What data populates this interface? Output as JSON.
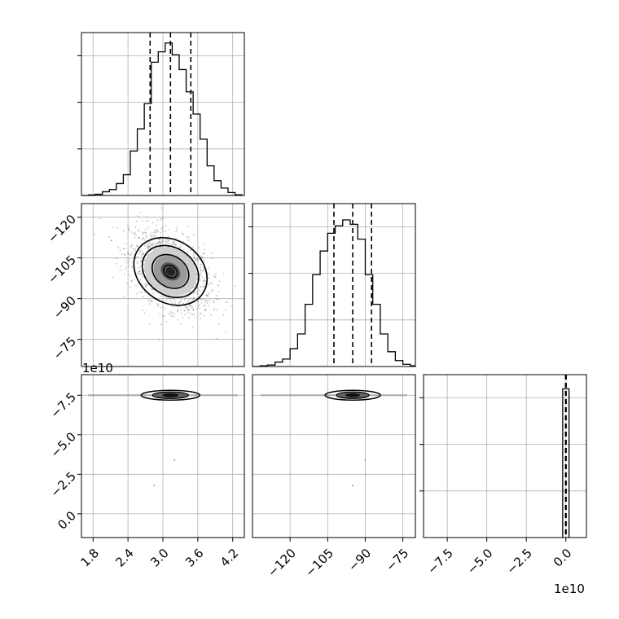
{
  "chart_data": {
    "type": "corner",
    "grid": true,
    "offset_label": "1e10",
    "panels": [
      {
        "kind": "histogram",
        "variable": "param-1",
        "xlim": [
          1.6,
          4.4
        ],
        "bins": [
          1.6,
          1.72,
          1.84,
          1.96,
          2.08,
          2.2,
          2.32,
          2.44,
          2.56,
          2.68,
          2.8,
          2.92,
          3.04,
          3.16,
          3.28,
          3.4,
          3.52,
          3.64,
          3.76,
          3.88,
          4.0,
          4.12,
          4.24,
          4.36
        ],
        "counts": [
          0,
          0.4,
          0.8,
          2.5,
          4,
          8,
          14,
          30,
          45,
          62,
          90,
          97,
          103,
          95,
          85,
          70,
          55,
          38,
          20,
          10,
          5,
          2,
          0.5
        ],
        "quantiles": [
          2.78,
          3.13,
          3.48
        ]
      },
      {
        "kind": "histogram",
        "variable": "param-2",
        "xlim": [
          -135,
          -70
        ],
        "bins": [
          -135,
          -132,
          -129,
          -126,
          -123,
          -120,
          -117,
          -114,
          -111,
          -108,
          -105,
          -102,
          -99,
          -96,
          -93,
          -90,
          -87,
          -84,
          -81,
          -78,
          -75,
          -72,
          -70
        ],
        "counts": [
          0,
          0.5,
          1,
          3,
          5,
          12,
          22,
          42,
          62,
          78,
          90,
          95,
          99,
          96,
          86,
          62,
          42,
          22,
          10,
          4,
          1.5,
          0.5
        ],
        "quantiles": [
          -102.5,
          -95,
          -87.5
        ]
      },
      {
        "kind": "histogram",
        "variable": "param-3",
        "xlim": [
          -9.0,
          1.3
        ],
        "bins": [
          -0.2,
          0.2
        ],
        "counts": [
          105
        ],
        "quantiles": [
          -0.02,
          0.0,
          0.02
        ]
      },
      {
        "kind": "scatter2d",
        "x_variable": "param-1",
        "y_variable": "param-2",
        "xlim": [
          1.6,
          4.4
        ],
        "ylim": [
          -130,
          -70
        ],
        "center": [
          3.13,
          -95
        ],
        "spread": [
          0.35,
          7.5
        ],
        "correlation": -0.45
      },
      {
        "kind": "scatter2d",
        "x_variable": "param-1",
        "y_variable": "param-3",
        "xlim": [
          1.6,
          4.4
        ],
        "ylim": [
          -9.0,
          1.3
        ],
        "center": [
          3.13,
          0
        ],
        "spread": [
          0.35,
          0.12
        ],
        "outliers": [
          [
            3.2,
            -4.1
          ],
          [
            2.85,
            -5.7
          ]
        ]
      },
      {
        "kind": "scatter2d",
        "x_variable": "param-2",
        "y_variable": "param-3",
        "xlim": [
          -135,
          -70
        ],
        "ylim": [
          -9.0,
          1.3
        ],
        "center": [
          -95,
          0
        ],
        "spread": [
          7.5,
          0.12
        ],
        "outliers": [
          [
            -90,
            -4.1
          ],
          [
            -95,
            -5.7
          ]
        ]
      }
    ],
    "x_ticks": {
      "param-1": [
        "1.8",
        "2.4",
        "3.0",
        "3.6",
        "4.2"
      ],
      "param-2": [
        "−120",
        "−105",
        "−90",
        "−75"
      ],
      "param-3": [
        "−7.5",
        "−5.0",
        "−2.5",
        "0.0"
      ]
    },
    "y_ticks": {
      "param-2": [
        "−75",
        "−90",
        "−105",
        "−120"
      ],
      "param-3": [
        "0.0",
        "−2.5",
        "−5.0",
        "−7.5"
      ]
    },
    "tick_values": {
      "param-1": [
        1.8,
        2.4,
        3.0,
        3.6,
        4.2
      ],
      "param-2": [
        -120,
        -105,
        -90,
        -75
      ],
      "param-3": [
        -7.5,
        -5.0,
        -2.5,
        0.0
      ]
    }
  }
}
